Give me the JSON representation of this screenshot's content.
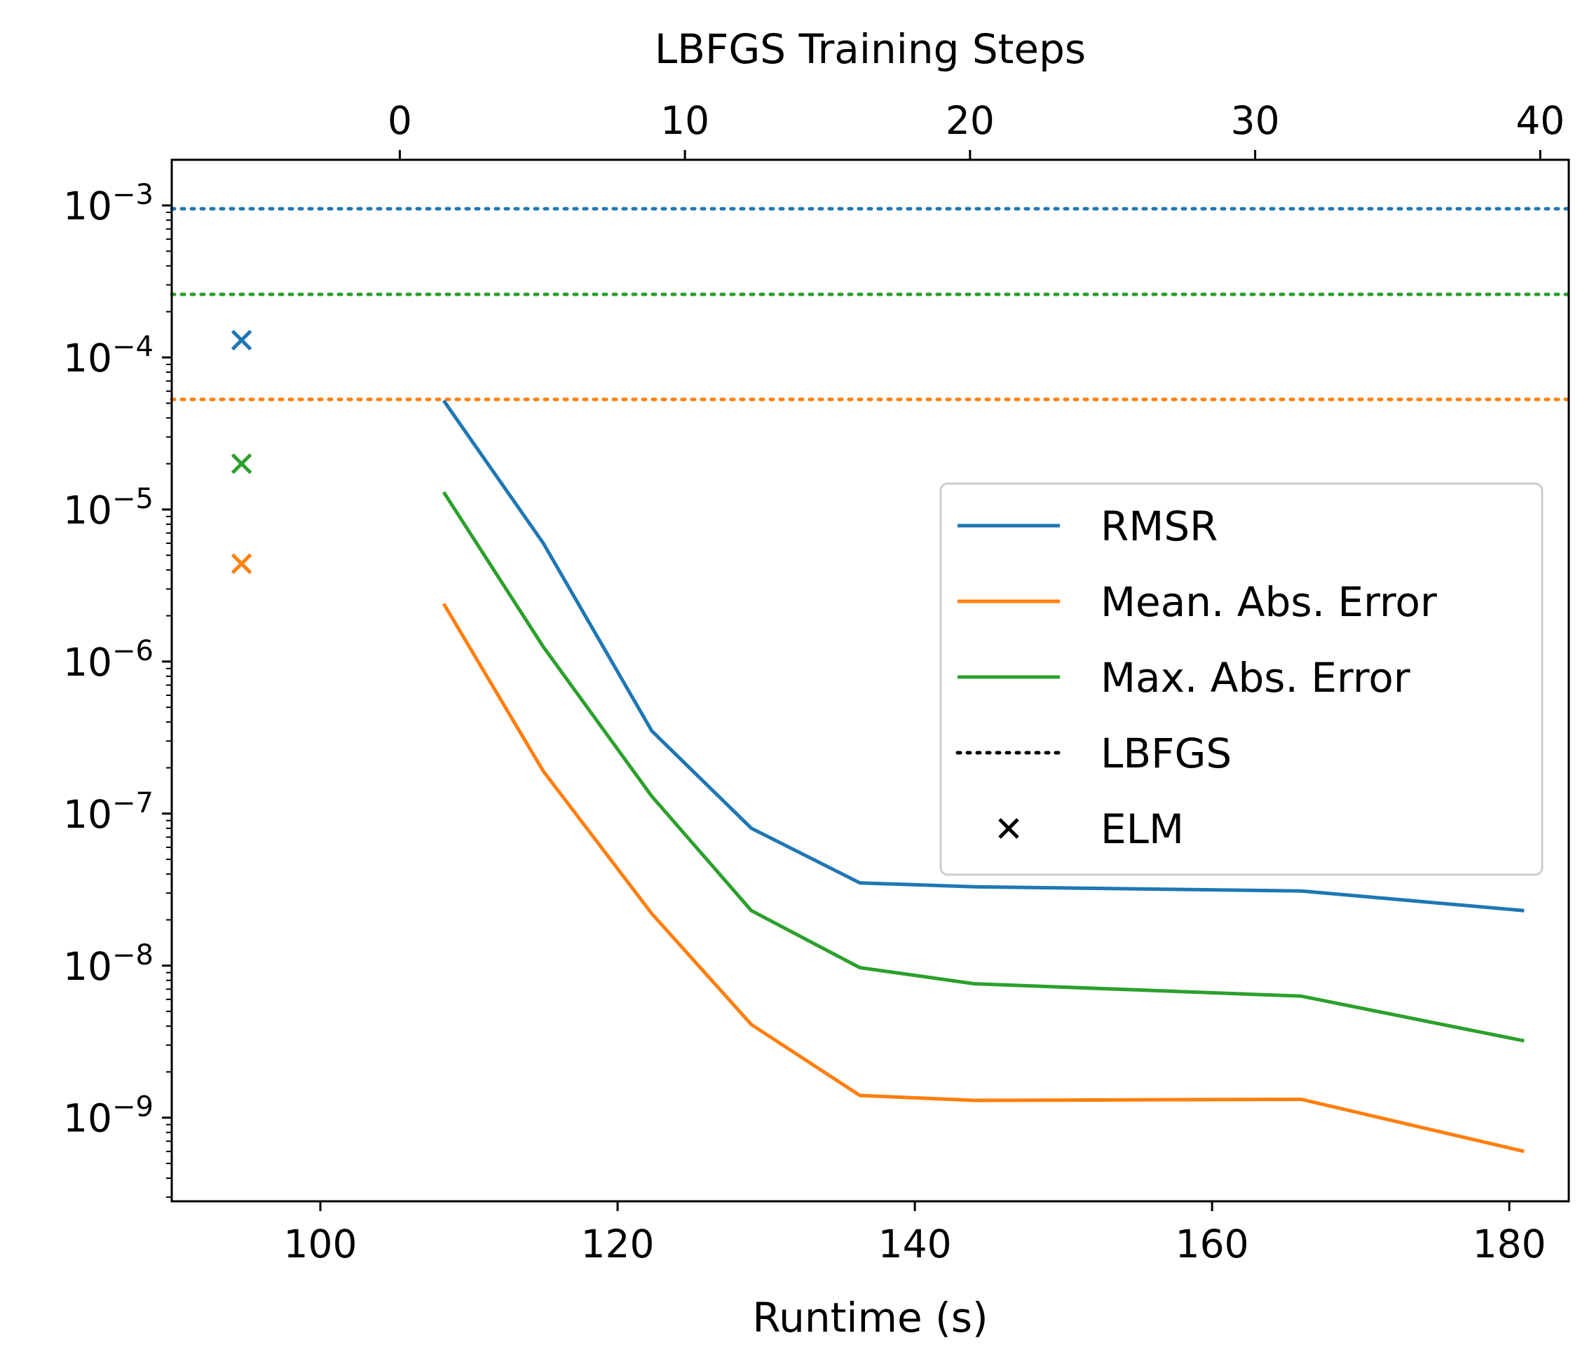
{
  "chart_data": {
    "type": "line",
    "x_top_label": "LBFGS Training Steps",
    "xlabel": "Runtime (s)",
    "ylabel": "",
    "x_bottom_ticks": [
      "100",
      "120",
      "140",
      "160",
      "180"
    ],
    "x_top_ticks": [
      "0",
      "10",
      "20",
      "30",
      "40"
    ],
    "y_tick_mantissa": "10",
    "y_tick_exponents": [
      "−3",
      "−4",
      "−5",
      "−6",
      "−7",
      "−8",
      "−9"
    ],
    "xlim": [
      90,
      184
    ],
    "xlim_top": [
      -8,
      41
    ],
    "ylim": [
      -9.55,
      -2.7
    ],
    "yscale": "log",
    "x": [
      108.3,
      115,
      122.3,
      129,
      136.3,
      144,
      166,
      181
    ],
    "series": [
      {
        "name": "RMSR",
        "color": "#1f77b4",
        "values": [
          5.2e-05,
          6e-06,
          3.5e-07,
          8e-08,
          3.5e-08,
          3.3e-08,
          3.1e-08,
          2.3e-08
        ]
      },
      {
        "name": "Mean. Abs. Error",
        "color": "#ff7f0e",
        "values": [
          2.4e-06,
          1.9e-07,
          2.2e-08,
          4.1e-09,
          1.4e-09,
          1.3e-09,
          1.32e-09,
          6e-10
        ]
      },
      {
        "name": "Max. Abs. Error",
        "color": "#2ca02c",
        "values": [
          1.3e-05,
          1.25e-06,
          1.3e-07,
          2.3e-08,
          9.7e-09,
          7.6e-09,
          6.3e-09,
          3.2e-09
        ]
      }
    ],
    "lbfgs_reference": [
      {
        "series": "RMSR",
        "value": 0.00095,
        "color": "#1f77b4"
      },
      {
        "series": "Max. Abs. Error",
        "value": 0.00026,
        "color": "#2ca02c"
      },
      {
        "series": "Mean. Abs. Error",
        "value": 5.3e-05,
        "color": "#ff7f0e"
      }
    ],
    "elm_points": [
      {
        "series": "RMSR",
        "x": 94.7,
        "value": 0.00013,
        "color": "#1f77b4"
      },
      {
        "series": "Max. Abs. Error",
        "x": 94.7,
        "value": 2e-05,
        "color": "#2ca02c"
      },
      {
        "series": "Mean. Abs. Error",
        "x": 94.7,
        "value": 4.4e-06,
        "color": "#ff7f0e"
      }
    ],
    "legend": {
      "location": "center-right",
      "entries": [
        {
          "label": "RMSR",
          "style": "line",
          "color": "#1f77b4"
        },
        {
          "label": "Mean. Abs. Error",
          "style": "line",
          "color": "#ff7f0e"
        },
        {
          "label": "Max. Abs. Error",
          "style": "line",
          "color": "#2ca02c"
        },
        {
          "label": "LBFGS",
          "style": "dotted",
          "color": "#000000"
        },
        {
          "label": "ELM",
          "style": "x-marker",
          "color": "#000000"
        }
      ]
    }
  }
}
